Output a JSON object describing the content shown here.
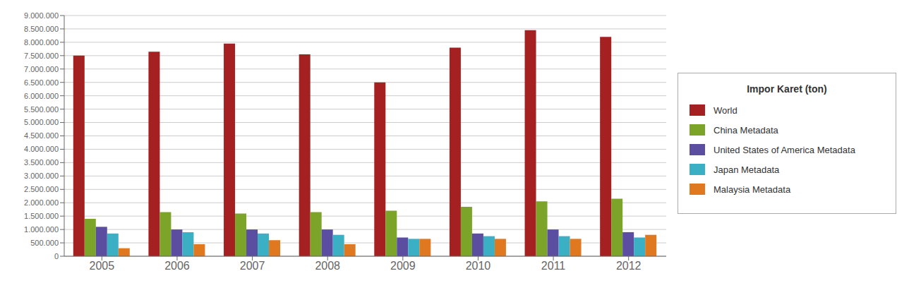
{
  "chart_data": {
    "type": "bar",
    "legend_title": "Impor Karet (ton)",
    "categories": [
      "2005",
      "2006",
      "2007",
      "2008",
      "2009",
      "2010",
      "2011",
      "2012"
    ],
    "series": [
      {
        "name": "World",
        "color": "#A52020",
        "values": [
          7500000,
          7650000,
          7950000,
          7550000,
          6500000,
          7800000,
          8450000,
          8200000
        ]
      },
      {
        "name": "China Metadata",
        "color": "#7BA428",
        "values": [
          1400000,
          1650000,
          1600000,
          1650000,
          1700000,
          1850000,
          2050000,
          2150000
        ]
      },
      {
        "name": "United States of America Metadata",
        "color": "#5B4EA0",
        "values": [
          1100000,
          1000000,
          1000000,
          1000000,
          700000,
          850000,
          1000000,
          900000
        ]
      },
      {
        "name": "Japan Metadata",
        "color": "#3BAFC4",
        "values": [
          850000,
          900000,
          850000,
          800000,
          650000,
          750000,
          750000,
          700000
        ]
      },
      {
        "name": "Malaysia Metadata",
        "color": "#E07820",
        "values": [
          300000,
          450000,
          600000,
          450000,
          650000,
          650000,
          650000,
          800000
        ]
      }
    ],
    "ylim": [
      0,
      9000000
    ],
    "yticks": [
      0,
      {
        "value": 500000,
        "label": "500.000"
      },
      {
        "value": 1000000,
        "label": "1.000.000"
      },
      {
        "value": 1500000,
        "label": "1.500.000"
      },
      {
        "value": 2000000,
        "label": "2.000.000"
      },
      {
        "value": 2500000,
        "label": "2.500.000"
      },
      {
        "value": 3000000,
        "label": "3.000.000"
      },
      {
        "value": 3500000,
        "label": "3.500.000"
      },
      {
        "value": 4000000,
        "label": "4.000.000"
      },
      {
        "value": 4500000,
        "label": "4.500.000"
      },
      {
        "value": 5000000,
        "label": "5.000.000"
      },
      {
        "value": 5500000,
        "label": "5.500.000"
      },
      {
        "value": 6000000,
        "label": "6.000.000"
      },
      {
        "value": 6500000,
        "label": "6.500.000"
      },
      {
        "value": 7000000,
        "label": "7.000.000"
      },
      {
        "value": 7500000,
        "label": "7.500.000"
      },
      {
        "value": 8000000,
        "label": "8.000.000"
      },
      {
        "value": 8500000,
        "label": "8.500.000"
      },
      {
        "value": 9000000,
        "label": "9.000.000"
      }
    ],
    "grid": true,
    "legend": "right"
  }
}
